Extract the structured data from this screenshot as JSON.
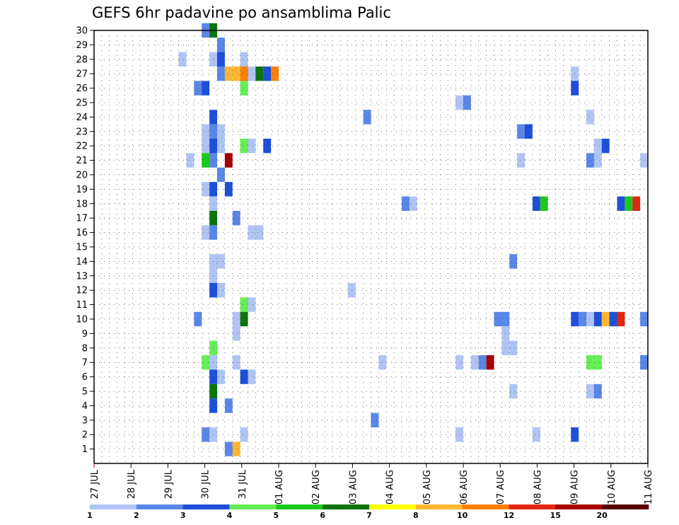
{
  "chart_data": {
    "type": "heatmap",
    "title": "GEFS 6hr padavine po ansamblima Palic",
    "xlabel": "",
    "ylabel": "",
    "x_tick_labels": [
      "27 JUL",
      "28 JUL",
      "29 JUL",
      "30 JUL",
      "31 JUL",
      "01 AUG",
      "02 AUG",
      "03 AUG",
      "04 AUG",
      "05 AUG",
      "06 AUG",
      "07 AUG",
      "08 AUG",
      "09 AUG",
      "10 AUG",
      "11 AUG"
    ],
    "y_tick_labels": [
      "1",
      "2",
      "3",
      "4",
      "5",
      "6",
      "7",
      "8",
      "9",
      "10",
      "11",
      "12",
      "13",
      "14",
      "15",
      "16",
      "17",
      "18",
      "19",
      "20",
      "21",
      "22",
      "23",
      "24",
      "25",
      "26",
      "27",
      "28",
      "29",
      "30"
    ],
    "x_unit": "6-hour step (4 per day) starting 27 JUL 00Z",
    "ylim": [
      0,
      30
    ],
    "grid": true,
    "color_scale": {
      "labels": [
        "1",
        "2",
        "3",
        "4",
        "5",
        "6",
        "7",
        "8",
        "10",
        "12",
        "15",
        "20"
      ],
      "colors": [
        "#b0c4f4",
        "#5a86e8",
        "#1e4fd8",
        "#66ee55",
        "#1cc81c",
        "#0d740d",
        "#ffff00",
        "#ffb733",
        "#ff8000",
        "#e02810",
        "#a80000",
        "#5a0000"
      ]
    },
    "values": [
      {
        "member": 30,
        "step": 14,
        "value": 2
      },
      {
        "member": 30,
        "step": 15,
        "value": 6
      },
      {
        "member": 29,
        "step": 16,
        "value": 2
      },
      {
        "member": 28,
        "step": 11,
        "value": 1
      },
      {
        "member": 28,
        "step": 15,
        "value": 1
      },
      {
        "member": 28,
        "step": 16,
        "value": 3
      },
      {
        "member": 28,
        "step": 19,
        "value": 1
      },
      {
        "member": 27,
        "step": 16,
        "value": 2
      },
      {
        "member": 27,
        "step": 17,
        "value": 8
      },
      {
        "member": 27,
        "step": 18,
        "value": 8
      },
      {
        "member": 27,
        "step": 19,
        "value": 10
      },
      {
        "member": 27,
        "step": 20,
        "value": 1
      },
      {
        "member": 27,
        "step": 21,
        "value": 6
      },
      {
        "member": 27,
        "step": 22,
        "value": 3
      },
      {
        "member": 27,
        "step": 23,
        "value": 10
      },
      {
        "member": 27,
        "step": 62,
        "value": 1
      },
      {
        "member": 26,
        "step": 13,
        "value": 2
      },
      {
        "member": 26,
        "step": 14,
        "value": 3
      },
      {
        "member": 26,
        "step": 19,
        "value": 4
      },
      {
        "member": 26,
        "step": 62,
        "value": 3
      },
      {
        "member": 25,
        "step": 47,
        "value": 1
      },
      {
        "member": 25,
        "step": 48,
        "value": 2
      },
      {
        "member": 24,
        "step": 15,
        "value": 3
      },
      {
        "member": 24,
        "step": 35,
        "value": 2
      },
      {
        "member": 24,
        "step": 64,
        "value": 1
      },
      {
        "member": 23,
        "step": 14,
        "value": 1
      },
      {
        "member": 23,
        "step": 15,
        "value": 2
      },
      {
        "member": 23,
        "step": 16,
        "value": 1
      },
      {
        "member": 23,
        "step": 55,
        "value": 2
      },
      {
        "member": 23,
        "step": 56,
        "value": 3
      },
      {
        "member": 22,
        "step": 14,
        "value": 1
      },
      {
        "member": 22,
        "step": 15,
        "value": 3
      },
      {
        "member": 22,
        "step": 16,
        "value": 1
      },
      {
        "member": 22,
        "step": 19,
        "value": 4
      },
      {
        "member": 22,
        "step": 20,
        "value": 1
      },
      {
        "member": 22,
        "step": 22,
        "value": 3
      },
      {
        "member": 22,
        "step": 65,
        "value": 1
      },
      {
        "member": 22,
        "step": 66,
        "value": 3
      },
      {
        "member": 21,
        "step": 12,
        "value": 1
      },
      {
        "member": 21,
        "step": 14,
        "value": 5
      },
      {
        "member": 21,
        "step": 15,
        "value": 2
      },
      {
        "member": 21,
        "step": 17,
        "value": 15
      },
      {
        "member": 21,
        "step": 55,
        "value": 1
      },
      {
        "member": 21,
        "step": 64,
        "value": 2
      },
      {
        "member": 21,
        "step": 65,
        "value": 1
      },
      {
        "member": 21,
        "step": 71,
        "value": 1
      },
      {
        "member": 20,
        "step": 16,
        "value": 2
      },
      {
        "member": 19,
        "step": 14,
        "value": 1
      },
      {
        "member": 19,
        "step": 15,
        "value": 3
      },
      {
        "member": 19,
        "step": 17,
        "value": 3
      },
      {
        "member": 18,
        "step": 15,
        "value": 1
      },
      {
        "member": 18,
        "step": 40,
        "value": 2
      },
      {
        "member": 18,
        "step": 41,
        "value": 1
      },
      {
        "member": 18,
        "step": 57,
        "value": 3
      },
      {
        "member": 18,
        "step": 58,
        "value": 5
      },
      {
        "member": 18,
        "step": 68,
        "value": 3
      },
      {
        "member": 18,
        "step": 69,
        "value": 5
      },
      {
        "member": 18,
        "step": 70,
        "value": 12
      },
      {
        "member": 17,
        "step": 15,
        "value": 6
      },
      {
        "member": 17,
        "step": 18,
        "value": 2
      },
      {
        "member": 16,
        "step": 14,
        "value": 1
      },
      {
        "member": 16,
        "step": 15,
        "value": 2
      },
      {
        "member": 16,
        "step": 20,
        "value": 1
      },
      {
        "member": 16,
        "step": 21,
        "value": 1
      },
      {
        "member": 14,
        "step": 15,
        "value": 1
      },
      {
        "member": 14,
        "step": 16,
        "value": 1
      },
      {
        "member": 14,
        "step": 54,
        "value": 2
      },
      {
        "member": 13,
        "step": 15,
        "value": 1
      },
      {
        "member": 12,
        "step": 15,
        "value": 3
      },
      {
        "member": 12,
        "step": 16,
        "value": 1
      },
      {
        "member": 12,
        "step": 33,
        "value": 1
      },
      {
        "member": 11,
        "step": 19,
        "value": 4
      },
      {
        "member": 11,
        "step": 20,
        "value": 1
      },
      {
        "member": 10,
        "step": 13,
        "value": 2
      },
      {
        "member": 10,
        "step": 18,
        "value": 1
      },
      {
        "member": 10,
        "step": 19,
        "value": 6
      },
      {
        "member": 10,
        "step": 52,
        "value": 2
      },
      {
        "member": 10,
        "step": 53,
        "value": 2
      },
      {
        "member": 10,
        "step": 62,
        "value": 3
      },
      {
        "member": 10,
        "step": 63,
        "value": 2
      },
      {
        "member": 10,
        "step": 64,
        "value": 1
      },
      {
        "member": 10,
        "step": 65,
        "value": 3
      },
      {
        "member": 10,
        "step": 66,
        "value": 8
      },
      {
        "member": 10,
        "step": 67,
        "value": 3
      },
      {
        "member": 10,
        "step": 68,
        "value": 12
      },
      {
        "member": 10,
        "step": 71,
        "value": 2
      },
      {
        "member": 9,
        "step": 18,
        "value": 1
      },
      {
        "member": 9,
        "step": 53,
        "value": 1
      },
      {
        "member": 8,
        "step": 15,
        "value": 4
      },
      {
        "member": 8,
        "step": 53,
        "value": 1
      },
      {
        "member": 8,
        "step": 54,
        "value": 1
      },
      {
        "member": 7,
        "step": 14,
        "value": 4
      },
      {
        "member": 7,
        "step": 15,
        "value": 1
      },
      {
        "member": 7,
        "step": 18,
        "value": 1
      },
      {
        "member": 7,
        "step": 37,
        "value": 1
      },
      {
        "member": 7,
        "step": 47,
        "value": 1
      },
      {
        "member": 7,
        "step": 49,
        "value": 1
      },
      {
        "member": 7,
        "step": 50,
        "value": 2
      },
      {
        "member": 7,
        "step": 51,
        "value": 15
      },
      {
        "member": 7,
        "step": 64,
        "value": 4
      },
      {
        "member": 7,
        "step": 65,
        "value": 4
      },
      {
        "member": 7,
        "step": 71,
        "value": 2
      },
      {
        "member": 6,
        "step": 15,
        "value": 3
      },
      {
        "member": 6,
        "step": 16,
        "value": 1
      },
      {
        "member": 6,
        "step": 19,
        "value": 3
      },
      {
        "member": 6,
        "step": 20,
        "value": 1
      },
      {
        "member": 5,
        "step": 15,
        "value": 6
      },
      {
        "member": 5,
        "step": 54,
        "value": 1
      },
      {
        "member": 5,
        "step": 64,
        "value": 1
      },
      {
        "member": 5,
        "step": 65,
        "value": 2
      },
      {
        "member": 4,
        "step": 15,
        "value": 3
      },
      {
        "member": 4,
        "step": 17,
        "value": 2
      },
      {
        "member": 3,
        "step": 36,
        "value": 2
      },
      {
        "member": 2,
        "step": 14,
        "value": 2
      },
      {
        "member": 2,
        "step": 15,
        "value": 1
      },
      {
        "member": 2,
        "step": 19,
        "value": 1
      },
      {
        "member": 2,
        "step": 47,
        "value": 1
      },
      {
        "member": 2,
        "step": 57,
        "value": 1
      },
      {
        "member": 2,
        "step": 62,
        "value": 3
      },
      {
        "member": 1,
        "step": 17,
        "value": 2
      },
      {
        "member": 1,
        "step": 18,
        "value": 8
      }
    ]
  }
}
